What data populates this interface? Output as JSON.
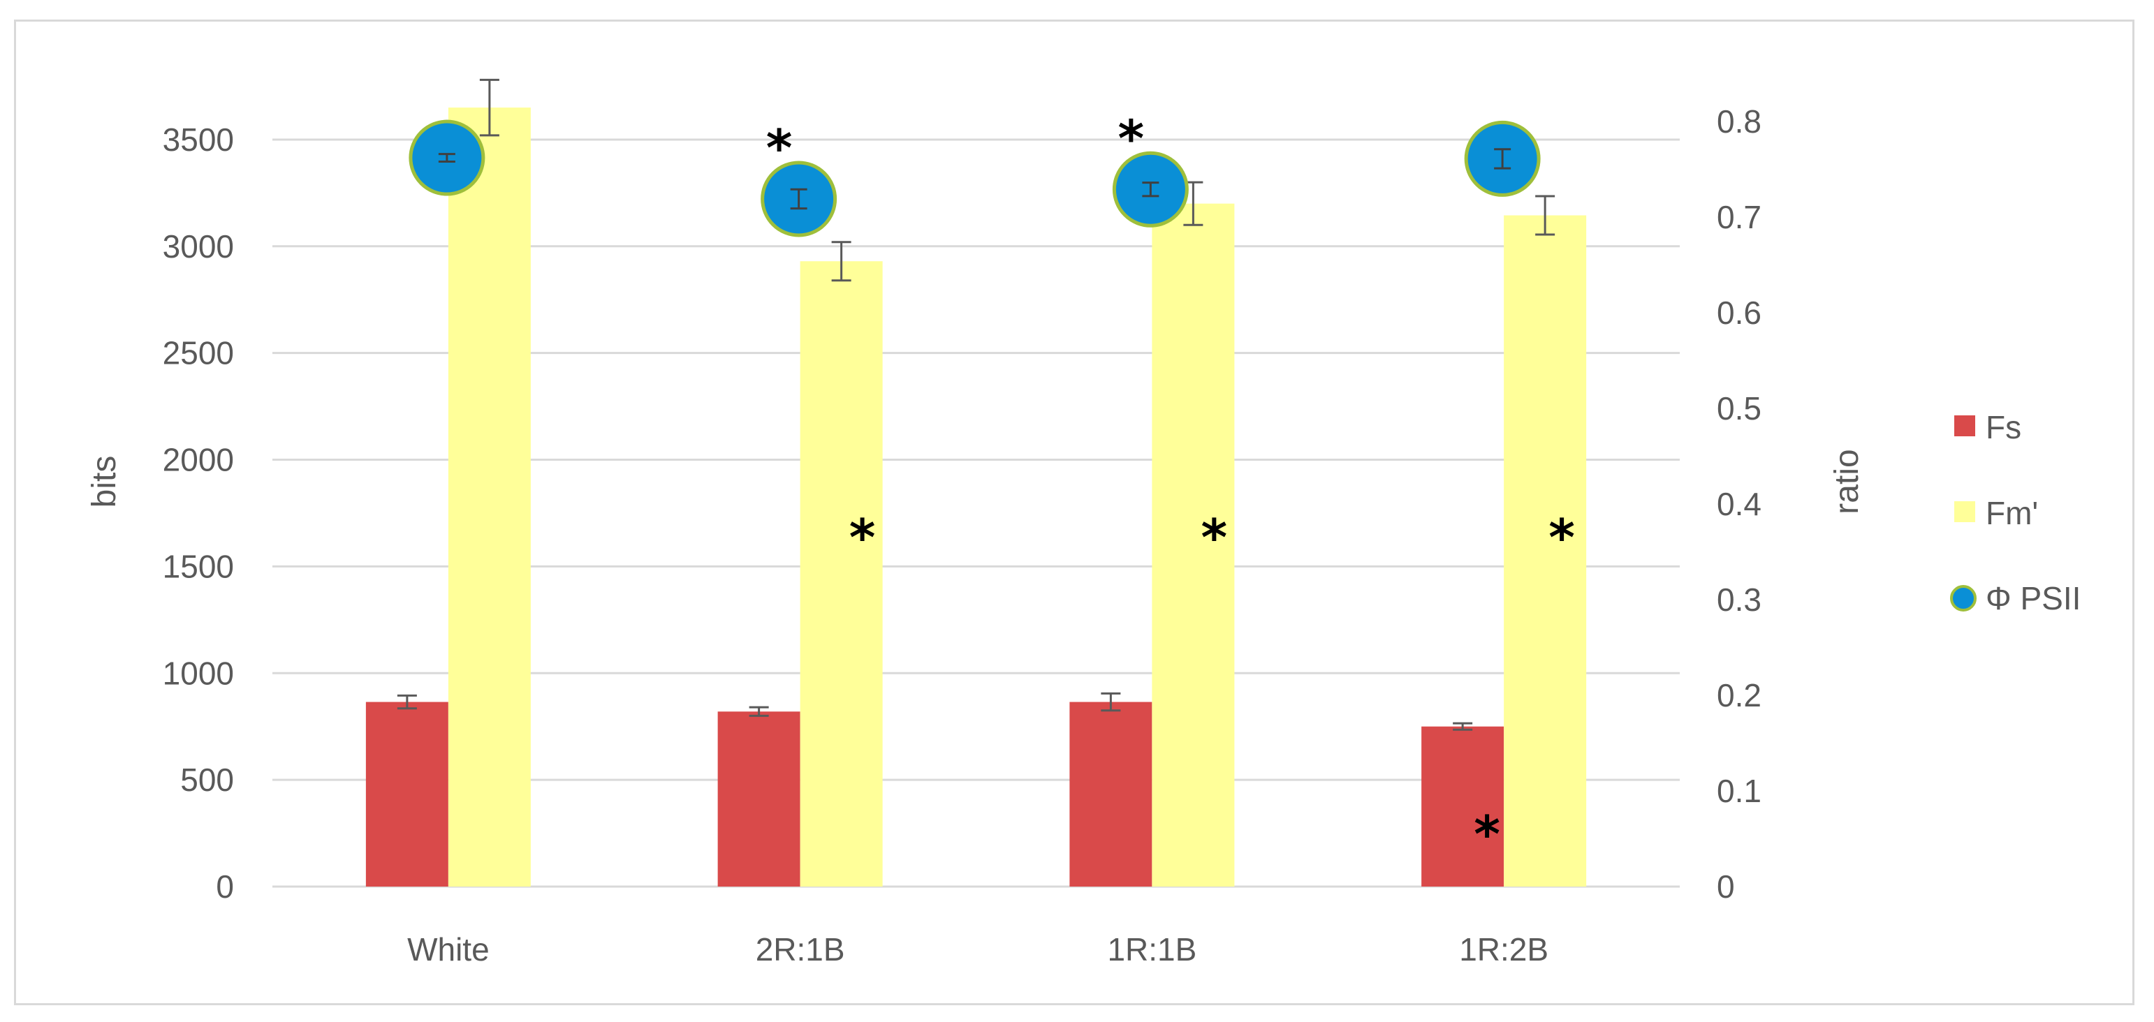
{
  "chart_data": {
    "type": "bar",
    "categories": [
      "White",
      "2R:1B",
      "1R:1B",
      "1R:2B"
    ],
    "ylabel": "bits",
    "y2label": "ratio",
    "ylim": [
      0,
      3500
    ],
    "y_ticks": [
      "0",
      "500",
      "1000",
      "1500",
      "2000",
      "2500",
      "3000",
      "3500"
    ],
    "y2lim": [
      0,
      0.8
    ],
    "y2_ticks": [
      "0",
      "0.1",
      "0.2",
      "0.3",
      "0.4",
      "0.5",
      "0.6",
      "0.7",
      "0.8"
    ],
    "grid": true,
    "legend_position": "right",
    "series": [
      {
        "name": "Fs",
        "type": "bar",
        "axis": "left",
        "color": "#d94a4a",
        "values": [
          865,
          820,
          865,
          750
        ],
        "errors": [
          30,
          20,
          40,
          15
        ],
        "significant": [
          false,
          false,
          false,
          true
        ]
      },
      {
        "name": "Fm'",
        "type": "bar",
        "axis": "left",
        "color": "#ffff99",
        "values": [
          3650,
          2930,
          3200,
          3145
        ],
        "errors": [
          130,
          90,
          100,
          90
        ],
        "significant": [
          false,
          true,
          true,
          true
        ]
      },
      {
        "name": "Φ PSII",
        "type": "scatter",
        "axis": "right",
        "color": "#0a8fd6",
        "values": [
          0.762,
          0.719,
          0.729,
          0.761
        ],
        "errors": [
          0.004,
          0.01,
          0.007,
          0.01
        ],
        "significant": [
          false,
          true,
          true,
          false
        ]
      }
    ],
    "significance_marker": "*"
  }
}
